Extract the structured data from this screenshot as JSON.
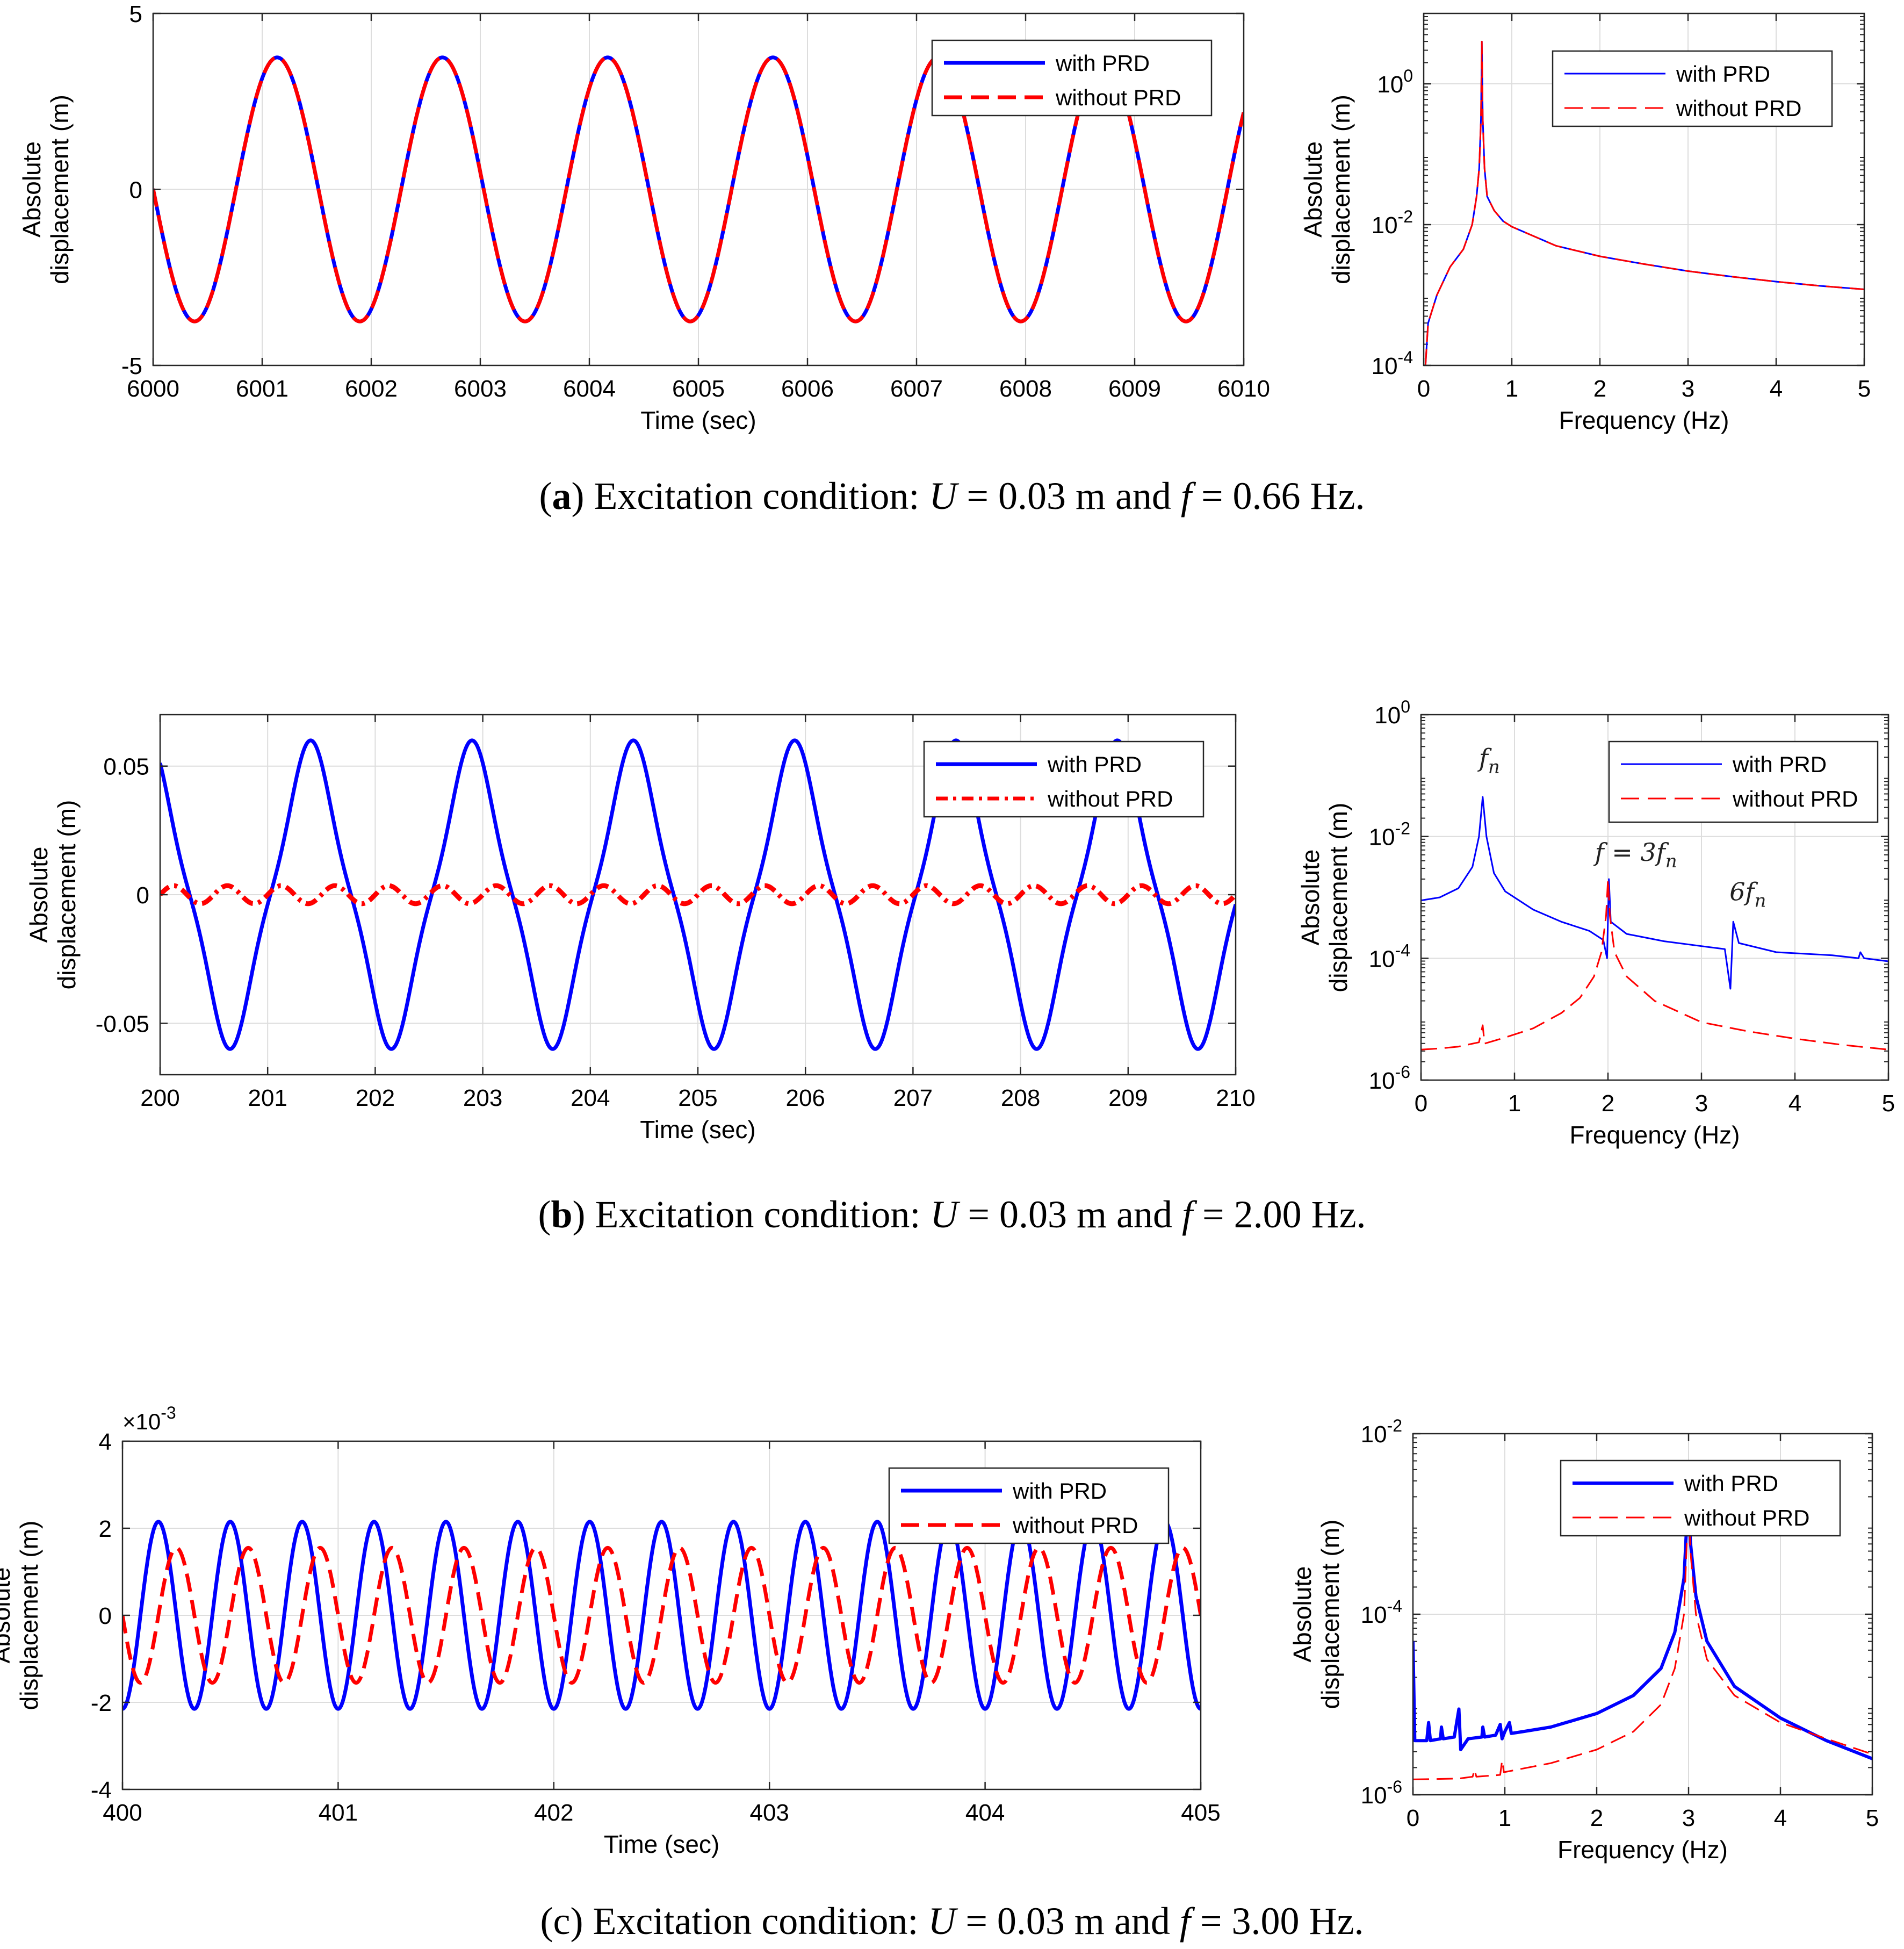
{
  "colors": {
    "with": "#0000ff",
    "without": "#ff0000",
    "grid": "#dddddd",
    "axis": "#262626"
  },
  "captions": [
    {
      "open": "(",
      "letter": "a",
      "close": ")",
      "text": " Excitation condition:  ",
      "u_var": "U",
      "u_text": " = 0.03 m and  ",
      "f_var": "f",
      "f_text": "  = 0.66 Hz."
    },
    {
      "open": "(",
      "letter": "b",
      "close": ")",
      "text": " Excitation condition:  ",
      "u_var": "U",
      "u_text": "  = 0.03 m and  ",
      "f_var": "f",
      "f_text": "  = 2.00 Hz."
    },
    {
      "open": "(",
      "letter": "c",
      "close": ")",
      "text": " Excitation condition:  ",
      "u_var": "U",
      "u_text": "  = 0.03 m and  ",
      "f_var": "f",
      "f_text": "  = 3.00 Hz."
    }
  ],
  "chart_data": [
    {
      "id": "a-time",
      "type": "line",
      "xlabel": "Time (sec)",
      "ylabel": [
        "Absolute",
        "displacement (m)"
      ],
      "xlim": [
        6000,
        6010
      ],
      "ylim": [
        -5,
        5
      ],
      "xticks": [
        6000,
        6001,
        6002,
        6003,
        6004,
        6005,
        6006,
        6007,
        6008,
        6009,
        6010
      ],
      "xtick_labels": [
        "6000",
        "6001",
        "6002",
        "6003",
        "6004",
        "6005",
        "6006",
        "6007",
        "6008",
        "6009",
        "6010"
      ],
      "yticks": [
        -5,
        0,
        5
      ],
      "ytick_labels": [
        "-5",
        "0",
        "5"
      ],
      "exponent_label": "",
      "legend": [
        "with PRD",
        "without PRD"
      ],
      "series": [
        {
          "name": "with PRD",
          "style": "solid",
          "width": 7,
          "signal": {
            "kind": "sine",
            "amp": 3.75,
            "freq": 0.66,
            "t0": 6000.38,
            "phase": -90
          }
        },
        {
          "name": "without PRD",
          "style": "dashed",
          "width": 7,
          "signal": {
            "kind": "sine",
            "amp": 3.75,
            "freq": 0.66,
            "t0": 6000.38,
            "phase": -90
          }
        }
      ]
    },
    {
      "id": "a-freq",
      "type": "line",
      "xlabel": "Frequency (Hz)",
      "ylabel": [
        "Absolute",
        "displacement (m)"
      ],
      "xlim": [
        0,
        5
      ],
      "log_ylim": [
        -4,
        1
      ],
      "xticks": [
        0,
        1,
        2,
        3,
        4,
        5
      ],
      "xtick_labels": [
        "0",
        "1",
        "2",
        "3",
        "4",
        "5"
      ],
      "yticks": [
        -4,
        -2,
        0
      ],
      "ytick_bases": [
        "10",
        "10",
        "10"
      ],
      "ytick_exps": [
        "-4",
        "-2",
        "0"
      ],
      "legend": [
        "with PRD",
        "without PRD"
      ],
      "series": [
        {
          "name": "with PRD",
          "style": "solid",
          "width": 3,
          "points": [
            [
              0.02,
              -4
            ],
            [
              0.05,
              -3.4
            ],
            [
              0.15,
              -3
            ],
            [
              0.3,
              -2.6
            ],
            [
              0.45,
              -2.35
            ],
            [
              0.55,
              -2.0
            ],
            [
              0.6,
              -1.6
            ],
            [
              0.63,
              -1.2
            ],
            [
              0.65,
              -0.5
            ],
            [
              0.66,
              0.6
            ],
            [
              0.67,
              -0.5
            ],
            [
              0.69,
              -1.2
            ],
            [
              0.72,
              -1.6
            ],
            [
              0.8,
              -1.8
            ],
            [
              0.9,
              -1.95
            ],
            [
              1.0,
              -2.03
            ],
            [
              1.5,
              -2.3
            ],
            [
              2.0,
              -2.45
            ],
            [
              2.5,
              -2.56
            ],
            [
              3.0,
              -2.66
            ],
            [
              3.5,
              -2.74
            ],
            [
              4.0,
              -2.81
            ],
            [
              4.5,
              -2.87
            ],
            [
              5.0,
              -2.92
            ]
          ]
        },
        {
          "name": "without PRD",
          "style": "dashed",
          "width": 3,
          "points": [
            [
              0.02,
              -4
            ],
            [
              0.05,
              -3.4
            ],
            [
              0.15,
              -3
            ],
            [
              0.3,
              -2.6
            ],
            [
              0.45,
              -2.35
            ],
            [
              0.55,
              -2.0
            ],
            [
              0.6,
              -1.6
            ],
            [
              0.63,
              -1.2
            ],
            [
              0.65,
              -0.5
            ],
            [
              0.66,
              0.6
            ],
            [
              0.67,
              -0.5
            ],
            [
              0.69,
              -1.2
            ],
            [
              0.72,
              -1.6
            ],
            [
              0.8,
              -1.8
            ],
            [
              0.9,
              -1.95
            ],
            [
              1.0,
              -2.03
            ],
            [
              1.5,
              -2.3
            ],
            [
              2.0,
              -2.45
            ],
            [
              2.5,
              -2.56
            ],
            [
              3.0,
              -2.66
            ],
            [
              3.5,
              -2.74
            ],
            [
              4.0,
              -2.81
            ],
            [
              4.5,
              -2.87
            ],
            [
              5.0,
              -2.92
            ]
          ]
        }
      ]
    },
    {
      "id": "b-time",
      "type": "line",
      "xlabel": "Time (sec)",
      "ylabel": [
        "Absolute",
        "displacement (m)"
      ],
      "xlim": [
        200,
        210
      ],
      "ylim": [
        -0.07,
        0.07
      ],
      "xticks": [
        200,
        201,
        202,
        203,
        204,
        205,
        206,
        207,
        208,
        209,
        210
      ],
      "xtick_labels": [
        "200",
        "201",
        "202",
        "203",
        "204",
        "205",
        "206",
        "207",
        "208",
        "209",
        "210"
      ],
      "yticks": [
        -0.05,
        0,
        0.05
      ],
      "ytick_labels": [
        "-0.05",
        "0",
        "0.05"
      ],
      "exponent_label": "",
      "legend": [
        "with PRD",
        "without PRD"
      ],
      "series": [
        {
          "name": "with PRD",
          "style": "solid",
          "width": 7,
          "signal": {
            "kind": "harm",
            "amp": 0.06,
            "freq": 0.6667,
            "t0": 200.65,
            "phase": -90,
            "h3": -0.11
          }
        },
        {
          "name": "without PRD",
          "style": "dashdot",
          "width": 9,
          "signal": {
            "kind": "sine",
            "amp": 0.0035,
            "freq": 2.0,
            "t0": 200.0,
            "phase": 0
          }
        }
      ]
    },
    {
      "id": "b-freq",
      "type": "line",
      "xlabel": "Frequency (Hz)",
      "ylabel": [
        "Absolute",
        "displacement (m)"
      ],
      "xlim": [
        0,
        5
      ],
      "log_ylim": [
        -6,
        0
      ],
      "xticks": [
        0,
        1,
        2,
        3,
        4,
        5
      ],
      "xtick_labels": [
        "0",
        "1",
        "2",
        "3",
        "4",
        "5"
      ],
      "yticks": [
        -6,
        -4,
        -2,
        0
      ],
      "ytick_bases": [
        "10",
        "10",
        "10",
        "10"
      ],
      "ytick_exps": [
        "-6",
        "-4",
        "-2",
        "0"
      ],
      "legend": [
        "with PRD",
        "without PRD"
      ],
      "annotations": [
        {
          "text": "f",
          "sub": "n",
          "prefix": "",
          "x": 0.62,
          "y": -0.85
        },
        {
          "text": "f = 3f",
          "sub": "n",
          "prefix": "",
          "x": 1.86,
          "y": -2.4
        },
        {
          "text": "6f",
          "sub": "n",
          "prefix": "",
          "x": 3.3,
          "y": -3.05
        }
      ],
      "series": [
        {
          "name": "with PRD",
          "style": "solid",
          "width": 3,
          "points": [
            [
              0,
              -3.05
            ],
            [
              0.2,
              -3.0
            ],
            [
              0.4,
              -2.85
            ],
            [
              0.55,
              -2.5
            ],
            [
              0.62,
              -2.0
            ],
            [
              0.66,
              -1.35
            ],
            [
              0.7,
              -2.0
            ],
            [
              0.78,
              -2.6
            ],
            [
              0.9,
              -2.9
            ],
            [
              1.2,
              -3.2
            ],
            [
              1.5,
              -3.4
            ],
            [
              1.8,
              -3.55
            ],
            [
              1.95,
              -3.7
            ],
            [
              1.99,
              -4.0
            ],
            [
              2.01,
              -2.7
            ],
            [
              2.03,
              -3.4
            ],
            [
              2.2,
              -3.6
            ],
            [
              2.6,
              -3.72
            ],
            [
              3.0,
              -3.8
            ],
            [
              3.25,
              -3.85
            ],
            [
              3.31,
              -4.5
            ],
            [
              3.34,
              -3.4
            ],
            [
              3.4,
              -3.75
            ],
            [
              3.8,
              -3.9
            ],
            [
              4.4,
              -3.95
            ],
            [
              4.68,
              -4.0
            ],
            [
              4.7,
              -3.9
            ],
            [
              4.74,
              -4.0
            ],
            [
              5.0,
              -4.05
            ]
          ]
        },
        {
          "name": "without PRD",
          "style": "dashed",
          "width": 3,
          "points": [
            [
              0,
              -5.5
            ],
            [
              0.2,
              -5.48
            ],
            [
              0.4,
              -5.45
            ],
            [
              0.62,
              -5.38
            ],
            [
              0.66,
              -5.1
            ],
            [
              0.68,
              -5.4
            ],
            [
              0.9,
              -5.3
            ],
            [
              1.2,
              -5.15
            ],
            [
              1.5,
              -4.9
            ],
            [
              1.7,
              -4.65
            ],
            [
              1.85,
              -4.3
            ],
            [
              1.93,
              -3.9
            ],
            [
              1.98,
              -3.3
            ],
            [
              2.0,
              -2.7
            ],
            [
              2.02,
              -3.3
            ],
            [
              2.07,
              -3.9
            ],
            [
              2.2,
              -4.3
            ],
            [
              2.5,
              -4.7
            ],
            [
              3.0,
              -5.05
            ],
            [
              3.5,
              -5.2
            ],
            [
              4.0,
              -5.32
            ],
            [
              4.5,
              -5.42
            ],
            [
              5.0,
              -5.5
            ]
          ]
        }
      ]
    },
    {
      "id": "c-time",
      "type": "line",
      "xlabel": "Time (sec)",
      "ylabel": [
        "Absolute",
        "displacement (m)"
      ],
      "xlim": [
        400,
        405
      ],
      "ylim": [
        -4,
        4
      ],
      "xticks": [
        400,
        401,
        402,
        403,
        404,
        405
      ],
      "xtick_labels": [
        "400",
        "401",
        "402",
        "403",
        "404",
        "405"
      ],
      "yticks": [
        -4,
        -2,
        0,
        2,
        4
      ],
      "ytick_labels": [
        "-4",
        "-2",
        "0",
        "2",
        "4"
      ],
      "exponent_label": "×10",
      "exponent_sup": "-3",
      "legend": [
        "with PRD",
        "without PRD"
      ],
      "series": [
        {
          "name": "with PRD",
          "style": "solid",
          "width": 7,
          "signal": {
            "kind": "sine",
            "amp": 2.15,
            "freq": 3.0,
            "t0": 400.0833,
            "phase": 0
          }
        },
        {
          "name": "without PRD",
          "style": "dashed",
          "width": 7,
          "signal": {
            "kind": "sine",
            "amp": 1.55,
            "freq": 3.0,
            "t0": 400.0,
            "phase": 180
          }
        }
      ]
    },
    {
      "id": "c-freq",
      "type": "line",
      "xlabel": "Frequency (Hz)",
      "ylabel": [
        "Absolute",
        "displacement (m)"
      ],
      "xlim": [
        0,
        5
      ],
      "log_ylim": [
        -6,
        -2
      ],
      "xticks": [
        0,
        1,
        2,
        3,
        4,
        5
      ],
      "xtick_labels": [
        "0",
        "1",
        "2",
        "3",
        "4",
        "5"
      ],
      "yticks": [
        -6,
        -4,
        -2
      ],
      "ytick_bases": [
        "10",
        "10",
        "10"
      ],
      "ytick_exps": [
        "-6",
        "-4",
        "-2"
      ],
      "legend": [
        "with PRD",
        "without PRD"
      ],
      "series": [
        {
          "name": "with PRD",
          "style": "solid",
          "width": 6,
          "points": [
            [
              0,
              -4.3
            ],
            [
              0.02,
              -5.4
            ],
            [
              0.1,
              -5.4
            ],
            [
              0.15,
              -5.4
            ],
            [
              0.17,
              -5.2
            ],
            [
              0.19,
              -5.4
            ],
            [
              0.3,
              -5.38
            ],
            [
              0.31,
              -5.25
            ],
            [
              0.33,
              -5.38
            ],
            [
              0.45,
              -5.36
            ],
            [
              0.5,
              -5.05
            ],
            [
              0.52,
              -5.5
            ],
            [
              0.6,
              -5.38
            ],
            [
              0.75,
              -5.36
            ],
            [
              0.76,
              -5.25
            ],
            [
              0.78,
              -5.36
            ],
            [
              0.9,
              -5.34
            ],
            [
              0.95,
              -5.22
            ],
            [
              0.97,
              -5.38
            ],
            [
              1.0,
              -5.3
            ],
            [
              1.05,
              -5.2
            ],
            [
              1.07,
              -5.32
            ],
            [
              1.2,
              -5.3
            ],
            [
              1.5,
              -5.25
            ],
            [
              2.0,
              -5.1
            ],
            [
              2.4,
              -4.9
            ],
            [
              2.7,
              -4.6
            ],
            [
              2.85,
              -4.2
            ],
            [
              2.95,
              -3.6
            ],
            [
              3.0,
              -2.6
            ],
            [
              3.02,
              -3.2
            ],
            [
              3.08,
              -3.8
            ],
            [
              3.2,
              -4.3
            ],
            [
              3.5,
              -4.8
            ],
            [
              4.0,
              -5.15
            ],
            [
              4.5,
              -5.4
            ],
            [
              5.0,
              -5.6
            ]
          ]
        },
        {
          "name": "without PRD",
          "style": "dashed",
          "width": 3,
          "points": [
            [
              0,
              -5.83
            ],
            [
              0.5,
              -5.82
            ],
            [
              0.65,
              -5.8
            ],
            [
              0.67,
              -5.72
            ],
            [
              0.69,
              -5.8
            ],
            [
              0.95,
              -5.78
            ],
            [
              0.97,
              -5.62
            ],
            [
              0.99,
              -5.75
            ],
            [
              1.5,
              -5.65
            ],
            [
              2.0,
              -5.5
            ],
            [
              2.4,
              -5.3
            ],
            [
              2.7,
              -5.0
            ],
            [
              2.85,
              -4.6
            ],
            [
              2.95,
              -4.0
            ],
            [
              3.0,
              -2.7
            ],
            [
              3.02,
              -3.3
            ],
            [
              3.08,
              -4.0
            ],
            [
              3.2,
              -4.5
            ],
            [
              3.5,
              -4.9
            ],
            [
              4.0,
              -5.2
            ],
            [
              4.5,
              -5.38
            ],
            [
              5.0,
              -5.55
            ]
          ]
        }
      ]
    }
  ]
}
